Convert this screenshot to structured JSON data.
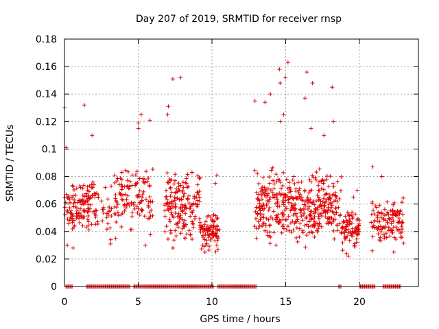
{
  "chart_data": {
    "type": "scatter",
    "title": "Day 207 of 2019, SRMTID for receiver rnsp",
    "xlabel": "GPS time / hours",
    "ylabel": "SRMTID / TECUs",
    "xlim": [
      0,
      24
    ],
    "ylim": [
      0,
      0.18
    ],
    "xticks": [
      0,
      5,
      10,
      15,
      20
    ],
    "xtick_labels": [
      "0",
      "5",
      "10",
      "15",
      "20"
    ],
    "yticks": [
      0,
      0.02,
      0.04,
      0.06,
      0.08,
      0.1,
      0.12,
      0.14,
      0.16,
      0.18
    ],
    "ytick_labels": [
      "0",
      "0.02",
      "0.04",
      "0.06",
      "0.08",
      "0.1",
      "0.12",
      "0.14",
      "0.16",
      "0.18"
    ],
    "grid": true,
    "legend": false,
    "marker": "plus",
    "series_color": "#e00000",
    "series": [
      {
        "name": "SRMTID",
        "clusters": [
          {
            "x": [
              0.0,
              2.3
            ],
            "center": 0.058,
            "spread": 0.012,
            "outliers": [
              0.101,
              0.11,
              0.13,
              0.132,
              0.028,
              0.03
            ],
            "count": 140
          },
          {
            "x": [
              2.5,
              3.2
            ],
            "center": 0.052,
            "spread": 0.008,
            "outliers": [
              0.031,
              0.034,
              0.072,
              0.073
            ],
            "count": 18
          },
          {
            "x": [
              3.4,
              6.0
            ],
            "center": 0.064,
            "spread": 0.014,
            "outliers": [
              0.119,
              0.115,
              0.125,
              0.121,
              0.03,
              0.035
            ],
            "count": 120
          },
          {
            "x": [
              6.8,
              9.2
            ],
            "center": 0.06,
            "spread": 0.014,
            "outliers": [
              0.151,
              0.152,
              0.131,
              0.125,
              0.028
            ],
            "count": 170
          },
          {
            "x": [
              9.2,
              10.5
            ],
            "center": 0.04,
            "spread": 0.008,
            "outliers": [
              0.081,
              0.075,
              0.025,
              0.027
            ],
            "count": 90
          },
          {
            "x": [
              12.9,
              16.0
            ],
            "center": 0.058,
            "spread": 0.015,
            "outliers": [
              0.163,
              0.158,
              0.152,
              0.148,
              0.14,
              0.135,
              0.134,
              0.125,
              0.12
            ],
            "count": 230
          },
          {
            "x": [
              16.0,
              18.8
            ],
            "center": 0.058,
            "spread": 0.015,
            "outliers": [
              0.156,
              0.148,
              0.145,
              0.137,
              0.12,
              0.115,
              0.11
            ],
            "count": 200
          },
          {
            "x": [
              18.8,
              20.0
            ],
            "center": 0.042,
            "spread": 0.008,
            "outliers": [
              0.07,
              0.065,
              0.024,
              0.022
            ],
            "count": 80
          },
          {
            "x": [
              20.8,
              23.0
            ],
            "center": 0.048,
            "spread": 0.009,
            "outliers": [
              0.087,
              0.08,
              0.025,
              0.026
            ],
            "count": 120
          }
        ],
        "zero_ranges": [
          [
            0.1,
            0.55
          ],
          [
            1.5,
            4.5
          ],
          [
            4.7,
            10.1
          ],
          [
            10.4,
            13.0
          ],
          [
            18.6,
            18.8
          ],
          [
            20.0,
            21.1
          ],
          [
            21.6,
            22.8
          ]
        ]
      }
    ]
  }
}
